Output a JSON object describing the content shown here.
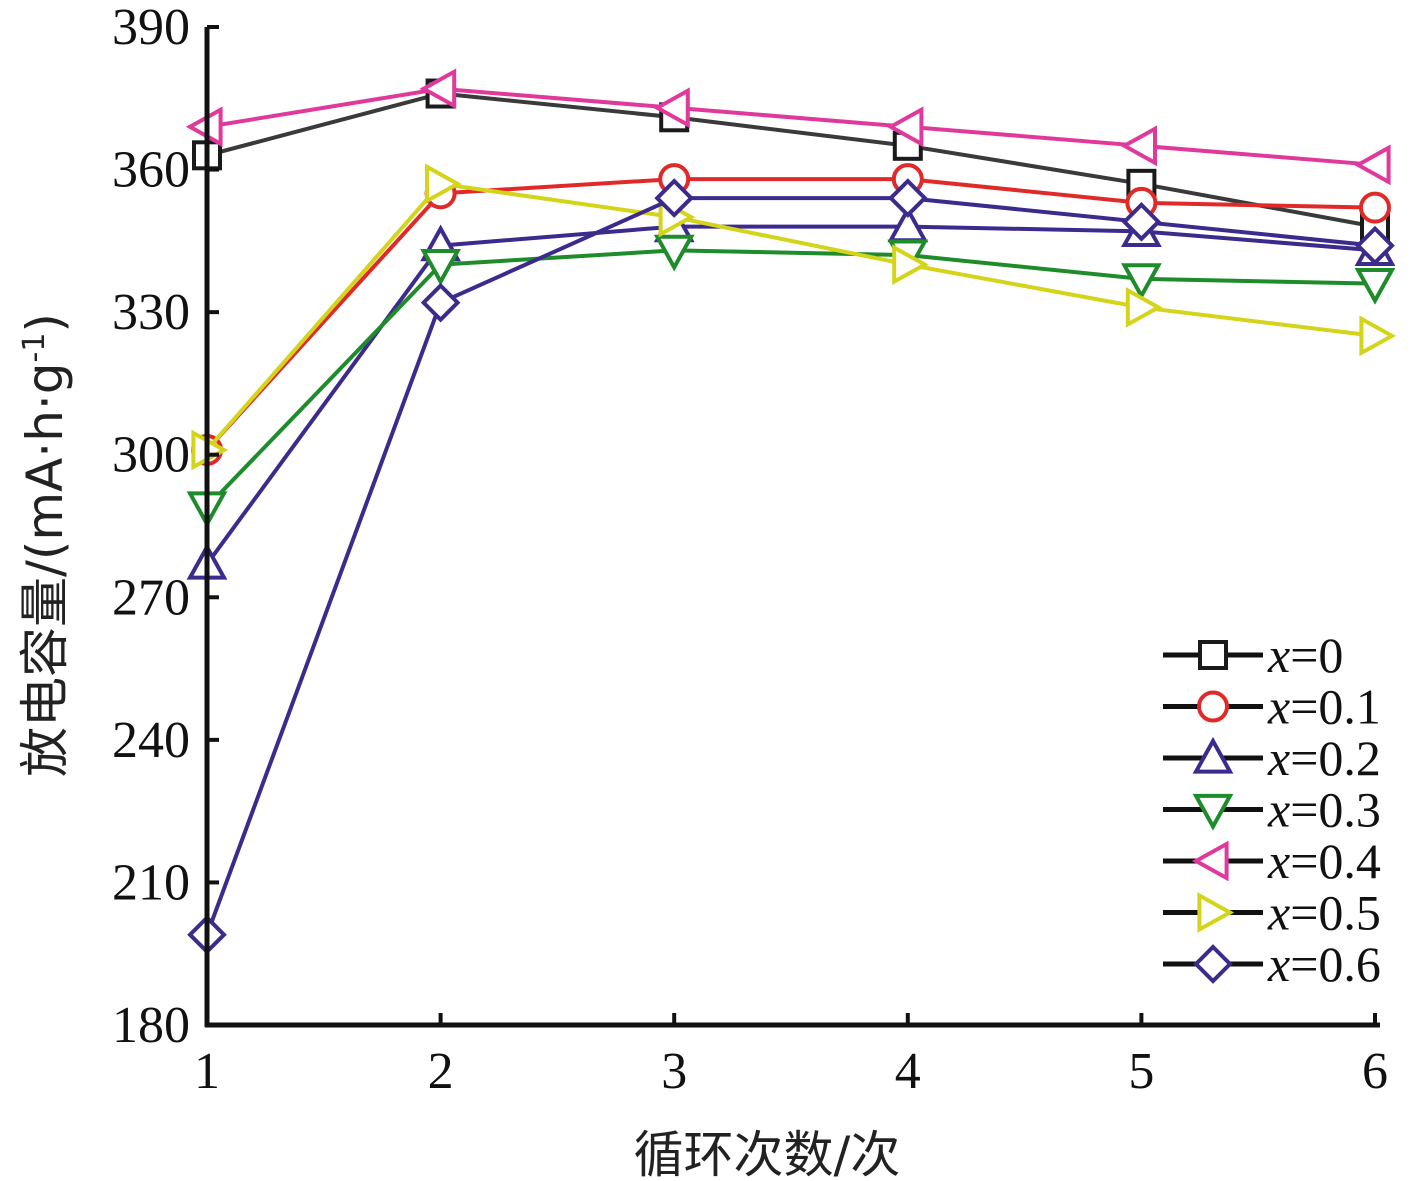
{
  "chart_data": {
    "type": "line",
    "xlabel": "循环次数/次",
    "ylabel_main": "放电容量/(mA·h·g",
    "ylabel_sup": "-1",
    "ylabel_close": ")",
    "x": [
      1,
      2,
      3,
      4,
      5,
      6
    ],
    "xlim": [
      1,
      6
    ],
    "ylim": [
      180,
      390
    ],
    "xticks": [
      "1",
      "2",
      "3",
      "4",
      "5",
      "6"
    ],
    "yticks": [
      "180",
      "210",
      "240",
      "270",
      "300",
      "330",
      "360",
      "390"
    ],
    "ytick_values": [
      180,
      210,
      240,
      270,
      300,
      330,
      360,
      390
    ],
    "grid": false,
    "legend_position": "bottom-right",
    "series": [
      {
        "name": "x=0",
        "var": "x",
        "eq": "=0",
        "marker": "square",
        "color": "#1a1a1a",
        "line_color": "#3a3a3a",
        "values": [
          363,
          376,
          371,
          365,
          357,
          348
        ]
      },
      {
        "name": "x=0.1",
        "var": "x",
        "eq": "=0.1",
        "marker": "circle",
        "color": "#e02a2a",
        "line_color": "#e02a2a",
        "values": [
          301,
          355,
          358,
          358,
          353,
          352
        ]
      },
      {
        "name": "x=0.2",
        "var": "x",
        "eq": "=0.2",
        "marker": "triangle-up",
        "color": "#3c2a8c",
        "line_color": "#3c2a8c",
        "values": [
          277,
          344,
          348,
          348,
          347,
          343
        ]
      },
      {
        "name": "x=0.3",
        "var": "x",
        "eq": "=0.3",
        "marker": "triangle-down",
        "color": "#1e8c2a",
        "line_color": "#1e8c2a",
        "values": [
          289,
          340,
          343,
          342,
          337,
          336
        ]
      },
      {
        "name": "x=0.4",
        "var": "x",
        "eq": "=0.4",
        "marker": "triangle-left",
        "color": "#e0399c",
        "line_color": "#e0399c",
        "values": [
          369,
          377,
          373,
          369,
          365,
          361
        ]
      },
      {
        "name": "x=0.5",
        "var": "x",
        "eq": "=0.5",
        "marker": "triangle-right",
        "color": "#d4d41a",
        "line_color": "#d4d41a",
        "values": [
          301,
          357,
          350,
          340,
          331,
          325
        ]
      },
      {
        "name": "x=0.6",
        "var": "x",
        "eq": "=0.6",
        "marker": "diamond",
        "color": "#3c2a8c",
        "line_color": "#3c2a8c",
        "values": [
          199,
          332,
          354,
          354,
          349,
          344
        ]
      }
    ]
  }
}
